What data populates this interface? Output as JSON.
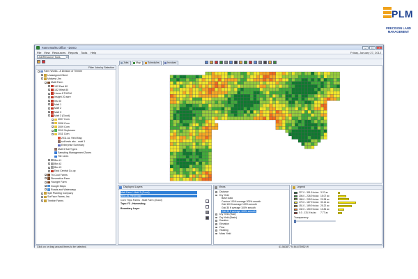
{
  "logo": {
    "mark": "PLM",
    "line1": "PRECISION LAND",
    "line2": "MANAGEMENT"
  },
  "window": {
    "title": "Farm Works Office - Demo",
    "menu": [
      "File",
      "View",
      "Resources",
      "Reports",
      "Tools",
      "Help"
    ],
    "date": "Friday, January 27, 2012",
    "combo_value": "Job/Resource Tools"
  },
  "tree": {
    "header": "Filter Jobs by Selection",
    "nodes": [
      {
        "label": "Farm Works - A Division of Trimble",
        "indent": 0,
        "exp": "-",
        "color": "#6b8fc7"
      },
      {
        "label": "Unassigned Client",
        "indent": 1,
        "exp": "+",
        "color": "#c9a23a"
      },
      {
        "label": "Midwest Jim",
        "indent": 1,
        "exp": "-",
        "color": "#c9a23a"
      },
      {
        "label": "Mattt Farm",
        "indent": 2,
        "exp": "-",
        "color": "#7a4a2a"
      },
      {
        "label": "152 East 80",
        "indent": 3,
        "exp": "+",
        "color": "#c23a2a"
      },
      {
        "label": "152 West 80",
        "indent": 3,
        "exp": "+",
        "color": "#c23a2a"
      },
      {
        "label": "Home 8 THISM",
        "indent": 3,
        "exp": "+",
        "color": "#c23a2a"
      },
      {
        "label": "Insight 20 acre",
        "indent": 3,
        "exp": "+",
        "color": "#c23a2a"
      },
      {
        "label": "Iris 40",
        "indent": 3,
        "exp": "+",
        "color": "#c23a2a"
      },
      {
        "label": "Matt 1",
        "indent": 3,
        "exp": "+",
        "color": "#c23a2a"
      },
      {
        "label": "Matt 2",
        "indent": 3,
        "exp": "+",
        "color": "#c23a2a"
      },
      {
        "label": "Matt 3",
        "indent": 3,
        "exp": "+",
        "color": "#c23a2a"
      },
      {
        "label": "Matt 3 (Good)",
        "indent": 3,
        "exp": "-",
        "color": "#c23a2a"
      },
      {
        "label": "2007 Corn",
        "indent": 4,
        "exp": "+",
        "color": "#e7c43a"
      },
      {
        "label": "2008 Corn",
        "indent": 4,
        "exp": "+",
        "color": "#e7c43a"
      },
      {
        "label": "2009 Corn",
        "indent": 4,
        "exp": "+",
        "color": "#e7c43a"
      },
      {
        "label": "2010 Soybeans",
        "indent": 4,
        "exp": "+",
        "color": "#4caf50"
      },
      {
        "label": "2011 Corn",
        "indent": 4,
        "exp": "-",
        "color": "#e7c43a"
      },
      {
        "label": "2011 AL Yield Map",
        "indent": 5,
        "exp": "",
        "color": "#d94c2f"
      },
      {
        "label": "soil tests abc - matt 3",
        "indent": 5,
        "exp": "",
        "color": "#8d6e63"
      },
      {
        "label": "Enterprise Summary",
        "indent": 5,
        "exp": "",
        "color": "#5c6bc0"
      },
      {
        "label": "Matt 3 Soil Types",
        "indent": 4,
        "exp": "",
        "color": "#8d6e63"
      },
      {
        "label": "Sampling Management Zones",
        "indent": 4,
        "exp": "",
        "color": "#3a7bd5"
      },
      {
        "label": "Tile Lines",
        "indent": 4,
        "exp": "",
        "color": "#3a7bd5"
      },
      {
        "label": "Bin #1",
        "indent": 3,
        "exp": "+",
        "color": "#9e9e9e"
      },
      {
        "label": "Bin #2",
        "indent": 3,
        "exp": "+",
        "color": "#9e9e9e"
      },
      {
        "label": "Bin #3",
        "indent": 3,
        "exp": "+",
        "color": "#9e9e9e"
      },
      {
        "label": "East Central Co-op",
        "indent": 3,
        "exp": "+",
        "color": "#c23a2a"
      },
      {
        "label": "Tri-Cool Farms",
        "indent": 2,
        "exp": "+",
        "color": "#7a4a2a"
      },
      {
        "label": "Stevmatica Farm",
        "indent": 2,
        "exp": "+",
        "color": "#7a4a2a"
      },
      {
        "label": "Younger Farm",
        "indent": 2,
        "exp": "+",
        "color": "#7a4a2a"
      },
      {
        "label": "Google Maps",
        "indent": 2,
        "exp": "+",
        "color": "#4a90d9"
      },
      {
        "label": "Roads and Waterways",
        "indent": 2,
        "exp": "+",
        "color": "#4a90d9"
      },
      {
        "label": "Spill Planting Company",
        "indent": 1,
        "exp": "+",
        "color": "#c9a23a"
      },
      {
        "label": "SurFace Farms, Inc.",
        "indent": 1,
        "exp": "+",
        "color": "#c9a23a"
      },
      {
        "label": "Trimble Farms",
        "indent": 1,
        "exp": "+",
        "color": "#c9a23a"
      }
    ]
  },
  "tabs": [
    {
      "label": "Jobs",
      "color": "#8a9bb3",
      "active": false
    },
    {
      "label": "Map",
      "color": "#3a8a3a",
      "active": true
    },
    {
      "label": "Schedules",
      "color": "#c98a2a",
      "active": false
    },
    {
      "label": "Invoices",
      "color": "#6a7ab3",
      "active": false
    }
  ],
  "field_colors": [
    "#0f7a2f",
    "#3faa3a",
    "#96cc3c",
    "#f0e62a",
    "#f6a623",
    "#ee6b1e",
    "#de2a1a"
  ],
  "layers_panel": {
    "title": "Displayed Layers",
    "items": [
      {
        "text": "Matt Farm \\ Matt 3 (Good)",
        "selected": true
      },
      {
        "text": "2011 AL Yield Map",
        "selected": true
      },
      {
        "text": "Corn Tripo Farms - Matt Farm (Good)",
        "selected": false
      },
      {
        "text": "Topo Y3 - Harvesting",
        "selected": false
      },
      {
        "text": "Boundary Layer",
        "selected": false
      }
    ]
  },
  "views_panel": {
    "title": "Views",
    "rows": [
      {
        "text": "Distance",
        "indent": 1,
        "exp": "+",
        "sel": false
      },
      {
        "text": "Dry Yield",
        "indent": 1,
        "exp": "-",
        "sel": false
      },
      {
        "text": "Base Data",
        "indent": 2,
        "exp": "",
        "sel": false
      },
      {
        "text": "Contour 100 ft average 200% smooth",
        "indent": 2,
        "exp": "",
        "sel": false
      },
      {
        "text": "Grid 100 ft average 100% smooth",
        "indent": 2,
        "exp": "",
        "sel": false
      },
      {
        "text": "Grid 30 ft average 100% smooth",
        "indent": 2,
        "exp": "",
        "sel": false
      },
      {
        "text": "Grid 30 ft average 100% smooth",
        "indent": 2,
        "exp": "",
        "sel": true
      },
      {
        "text": "Dry Yield (Raw)",
        "indent": 1,
        "exp": "+",
        "sel": false
      },
      {
        "text": "Dry Yield (Basic)",
        "indent": 1,
        "exp": "+",
        "sel": false
      },
      {
        "text": "Duration",
        "indent": 1,
        "exp": "+",
        "sel": false
      },
      {
        "text": "Elevation",
        "indent": 1,
        "exp": "+",
        "sel": false
      },
      {
        "text": "Flow",
        "indent": 1,
        "exp": "+",
        "sel": false
      },
      {
        "text": "Heading",
        "indent": 1,
        "exp": "+",
        "sel": false
      },
      {
        "text": "Mass Yield",
        "indent": 1,
        "exp": "+",
        "sel": false
      }
    ]
  },
  "legend": {
    "title": "Legend",
    "rows": [
      {
        "range": "227.0 - 351.5 bu/ac",
        "acres": "3.37 ac",
        "color": "#0f7a2f",
        "share": 0.1
      },
      {
        "range": "206.0 - 226.9 bu/ac",
        "acres": "15.07 ac",
        "color": "#3faa3a",
        "share": 0.45
      },
      {
        "range": "188.0 - 205.9 bu/ac",
        "acres": "20.98 ac",
        "color": "#96cc3c",
        "share": 0.62
      },
      {
        "range": "170.0 - 187.9 bu/ac",
        "acres": "33.14 ac",
        "color": "#f0e62a",
        "share": 1.0
      },
      {
        "range": "151.0 - 169.9 bu/ac",
        "acres": "25.22 ac",
        "color": "#f6a623",
        "share": 0.76
      },
      {
        "range": "132.0 - 150.9 bu/ac",
        "acres": "10.84 ac",
        "color": "#ee6b1e",
        "share": 0.33
      },
      {
        "range": "0.0 - 131.9 bu/ac",
        "acres": "7.77 ac",
        "color": "#de2a1a",
        "share": 0.23
      }
    ],
    "transparency_label": "Transparency"
  },
  "status": {
    "left": "Click on or drag around items to be selected.",
    "coords": "41.563877 N   84.875952 W"
  }
}
